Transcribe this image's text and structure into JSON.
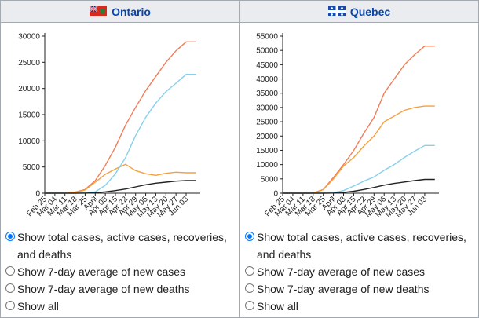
{
  "panels": [
    {
      "title": "Ontario",
      "flag_icon": "ontario-flag-icon",
      "options": [
        {
          "label": "Show total cases, active cases, recoveries, and deaths",
          "selected": true
        },
        {
          "label": "Show 7-day average of new cases",
          "selected": false
        },
        {
          "label": "Show 7-day average of new deaths",
          "selected": false
        },
        {
          "label": "Show all",
          "selected": false
        }
      ]
    },
    {
      "title": "Quebec",
      "flag_icon": "quebec-flag-icon",
      "options": [
        {
          "label": "Show total cases, active cases, recoveries, and deaths",
          "selected": true
        },
        {
          "label": "Show 7-day average of new cases",
          "selected": false
        },
        {
          "label": "Show 7-day average of new deaths",
          "selected": false
        },
        {
          "label": "Show all",
          "selected": false
        }
      ]
    }
  ],
  "colors": {
    "total": "#f07d5a",
    "active": "#f5a03c",
    "recovered": "#87d0ec",
    "deaths": "#222222"
  },
  "chart_data": [
    {
      "type": "line",
      "title": "",
      "ylim": [
        0,
        30000
      ],
      "yticks": [
        0,
        5000,
        10000,
        15000,
        20000,
        25000,
        30000
      ],
      "x_tick_labels": [
        "Feb 25",
        "Mar 04",
        "Mar 11",
        "Mar 18",
        "Mar 25",
        "April",
        "Apr 08",
        "Apr 15",
        "Apr 22",
        "Apr 29",
        "May 06",
        "May 13",
        "May 20",
        "May 27",
        "Jun 03"
      ],
      "x": [
        "Feb 25",
        "Mar 04",
        "Mar 11",
        "Mar 18",
        "Mar 25",
        "Apr 01",
        "Apr 08",
        "Apr 15",
        "Apr 22",
        "Apr 29",
        "May 06",
        "May 13",
        "May 20",
        "May 27",
        "Jun 03",
        "Jun 06"
      ],
      "series": [
        {
          "key": "total",
          "values": [
            5,
            20,
            40,
            200,
            700,
            2400,
            5300,
            8800,
            13000,
            16400,
            19600,
            22300,
            25000,
            27200,
            28900,
            28900
          ]
        },
        {
          "key": "active",
          "values": [
            5,
            20,
            40,
            180,
            600,
            2100,
            3600,
            4600,
            5500,
            4300,
            3700,
            3400,
            3800,
            4000,
            3900,
            3900
          ]
        },
        {
          "key": "recovered",
          "values": [
            0,
            0,
            0,
            10,
            50,
            250,
            1500,
            3700,
            6800,
            11000,
            14500,
            17200,
            19400,
            21000,
            22700,
            22700
          ]
        },
        {
          "key": "deaths",
          "values": [
            0,
            0,
            0,
            5,
            20,
            80,
            260,
            500,
            800,
            1200,
            1600,
            1900,
            2100,
            2300,
            2400,
            2400
          ]
        }
      ]
    },
    {
      "type": "line",
      "title": "",
      "ylim": [
        0,
        55000
      ],
      "yticks": [
        0,
        5000,
        10000,
        15000,
        20000,
        25000,
        30000,
        35000,
        40000,
        45000,
        50000,
        55000
      ],
      "x_tick_labels": [
        "Feb 25",
        "Mar 04",
        "Mar 11",
        "Mar 18",
        "Mar 25",
        "April",
        "Apr 08",
        "Apr 15",
        "Apr 22",
        "Apr 29",
        "May 06",
        "May 13",
        "May 20",
        "May 27",
        "Jun 03"
      ],
      "x": [
        "Feb 25",
        "Mar 04",
        "Mar 11",
        "Mar 18",
        "Mar 25",
        "Apr 01",
        "Apr 08",
        "Apr 15",
        "Apr 22",
        "Apr 29",
        "May 06",
        "May 13",
        "May 20",
        "May 27",
        "Jun 03",
        "Jun 06"
      ],
      "series": [
        {
          "key": "total",
          "values": [
            0,
            0,
            5,
            50,
            1300,
            5500,
            10000,
            15000,
            21000,
            26500,
            35000,
            40000,
            45000,
            48500,
            51500,
            51500
          ]
        },
        {
          "key": "active",
          "values": [
            0,
            0,
            5,
            50,
            1250,
            5000,
            9500,
            12500,
            16500,
            20000,
            25000,
            27000,
            29000,
            30000,
            30500,
            30500
          ]
        },
        {
          "key": "recovered",
          "values": [
            0,
            0,
            0,
            0,
            30,
            200,
            900,
            2500,
            4200,
            5700,
            8000,
            10000,
            12500,
            14700,
            16700,
            16700
          ]
        },
        {
          "key": "deaths",
          "values": [
            0,
            0,
            0,
            0,
            10,
            50,
            250,
            700,
            1300,
            2000,
            2800,
            3400,
            3900,
            4400,
            4800,
            4800
          ]
        }
      ]
    }
  ]
}
